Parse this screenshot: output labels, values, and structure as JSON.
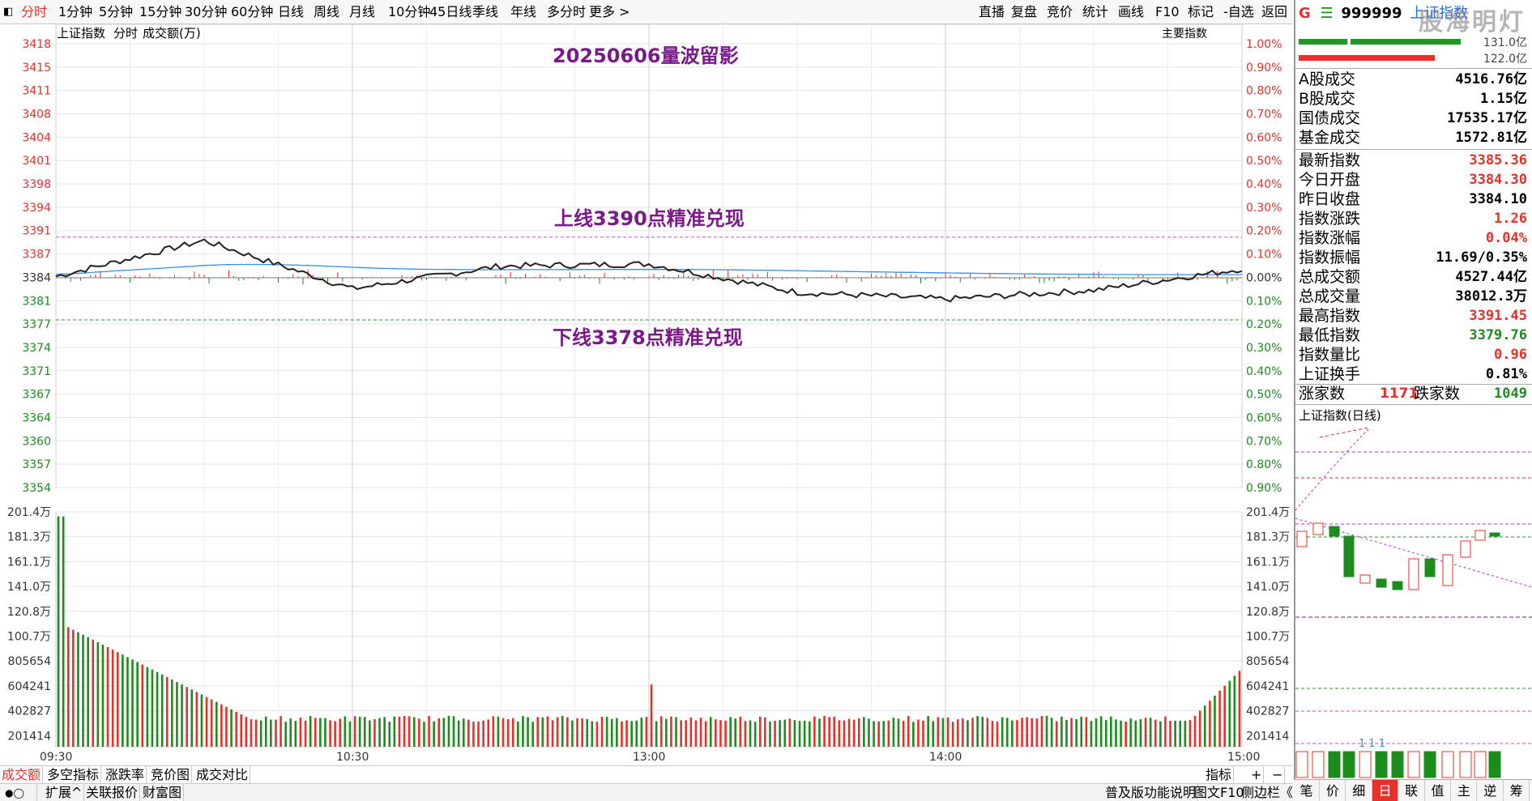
{
  "toolbar": {
    "left": [
      "分时",
      "1分钟",
      "5分钟",
      "15分钟",
      "30分钟",
      "60分钟",
      "日线",
      "周线",
      "月线",
      "10分钟",
      "45日线",
      "季线",
      "年线",
      "多分时",
      "更多 >"
    ],
    "right": [
      "直播",
      "复盘",
      "竞价",
      "统计",
      "画线",
      "F10",
      "标记",
      "-自选",
      "返回"
    ]
  },
  "chart": {
    "index_name": "上证指数",
    "mode": "分时",
    "vol_label": "成交额(万)",
    "main_indicator": "主要指数",
    "price_ticks": [
      "3418",
      "3415",
      "3411",
      "3408",
      "3404",
      "3401",
      "3398",
      "3394",
      "3391",
      "3387",
      "3384",
      "3381",
      "3377",
      "3374",
      "3371",
      "3367",
      "3364",
      "3360",
      "3357",
      "3354"
    ],
    "pct_ticks": [
      "1.00%",
      "0.90%",
      "0.80%",
      "0.70%",
      "0.60%",
      "0.50%",
      "0.40%",
      "0.30%",
      "0.20%",
      "0.10%",
      "0.00%",
      "0.10%",
      "0.20%",
      "0.30%",
      "0.40%",
      "0.50%",
      "0.60%",
      "0.70%",
      "0.80%",
      "0.90%"
    ],
    "vol_ticks": [
      "201.4万",
      "181.3万",
      "161.1万",
      "141.0万",
      "120.8万",
      "100.7万",
      "805654",
      "604241",
      "402827",
      "201414"
    ],
    "time_labels": [
      "09:30",
      "10:30",
      "13:00",
      "14:00",
      "15:00"
    ],
    "annotations": {
      "title": "20250606量波留影",
      "upper": "上线3390点精准兑现",
      "lower": "下线3378点精准兑现"
    }
  },
  "chart_data": {
    "type": "line",
    "prev_close": 3384.1,
    "x": [
      "09:30",
      "10:00",
      "10:30",
      "11:00",
      "11:30/13:00",
      "13:30",
      "14:00",
      "14:30",
      "15:00"
    ],
    "series": [
      {
        "name": "上证指数",
        "values": [
          3384.3,
          3389.5,
          3382.5,
          3385.8,
          3386.1,
          3382.0,
          3381.0,
          3382.3,
          3385.4
        ]
      }
    ],
    "upper_line": 3390,
    "lower_line": 3378,
    "high": 3391.45,
    "low": 3379.76
  },
  "quote": {
    "code": "999999",
    "name": "上证指数",
    "watermark": "股海明灯",
    "bar_top": "131.0亿",
    "bar_bottom": "122.0亿",
    "rows": [
      {
        "k": "A股成交",
        "v": "4516.76亿",
        "c": "blk"
      },
      {
        "k": "B股成交",
        "v": "1.15亿",
        "c": "blk"
      },
      {
        "k": "国债成交",
        "v": "17535.17亿",
        "c": "blk"
      },
      {
        "k": "基金成交",
        "v": "1572.81亿",
        "c": "blk"
      }
    ],
    "rows2": [
      {
        "k": "最新指数",
        "v": "3385.36",
        "c": "red"
      },
      {
        "k": "今日开盘",
        "v": "3384.30",
        "c": "red"
      },
      {
        "k": "昨日收盘",
        "v": "3384.10",
        "c": "blk"
      },
      {
        "k": "指数涨跌",
        "v": "1.26",
        "c": "red"
      },
      {
        "k": "指数涨幅",
        "v": "0.04%",
        "c": "red"
      },
      {
        "k": "指数振幅",
        "v": "11.69/0.35%",
        "c": "blk"
      },
      {
        "k": "总成交额",
        "v": "4527.44亿",
        "c": "blk"
      },
      {
        "k": "总成交量",
        "v": "38012.3万",
        "c": "blk"
      },
      {
        "k": "最高指数",
        "v": "3391.45",
        "c": "red"
      },
      {
        "k": "最低指数",
        "v": "3379.76",
        "c": "green"
      },
      {
        "k": "指数量比",
        "v": "0.96",
        "c": "red"
      },
      {
        "k": "上证换手",
        "v": "0.81%",
        "c": "blk"
      }
    ],
    "up_label": "涨家数",
    "up": "1171",
    "down_label": "跌家数",
    "down": "1049",
    "mini_title": "上证指数(日线)",
    "mini_marks": "1 1 1"
  },
  "bottom": {
    "tabs1": [
      "成交额",
      "多空指标",
      "涨跌率",
      "竞价图",
      "成交对比"
    ],
    "right1": [
      "指标",
      "+",
      "−"
    ],
    "tabs2": [
      "扩展^",
      "关联报价",
      "财富图"
    ],
    "right2": [
      "普及版功能说明",
      "图文F10",
      "侧边栏《"
    ],
    "rtabs": [
      "笔",
      "价",
      "细",
      "日",
      "联",
      "值",
      "主",
      "逆",
      "筹"
    ]
  }
}
